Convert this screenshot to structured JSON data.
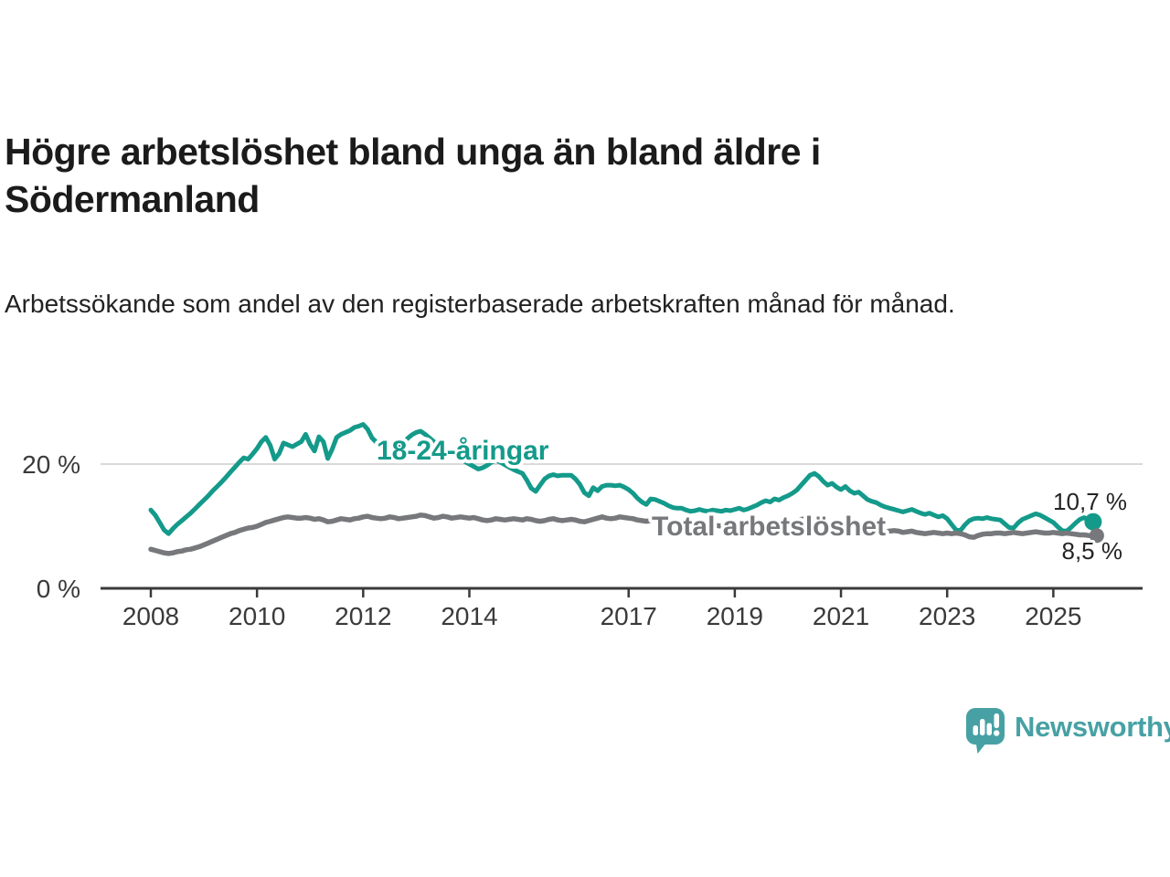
{
  "header": {
    "title": "Högre arbetslöshet bland unga än bland äldre i Södermanland",
    "subtitle": "Arbetssökande som andel av den registerbaserade arbetskraften månad för månad."
  },
  "chart_data": {
    "type": "line",
    "title": "Högre arbetslöshet bland unga än bland äldre i Södermanland",
    "xlabel": "",
    "ylabel": "Arbetssökande som andel av den registerbaserade arbetskraften",
    "x_unit": "month",
    "x_start_year": 2008,
    "x_start": "2008-01",
    "x_end": "2025-10",
    "x_ticks": [
      2008,
      2010,
      2012,
      2014,
      2017,
      2019,
      2021,
      2023,
      2025
    ],
    "y_ticks": [
      {
        "label": "0 %",
        "value": 0
      },
      {
        "label": "20 %",
        "value": 20
      }
    ],
    "ylim": [
      0,
      27.5
    ],
    "grid": "horizontal-only",
    "legend_position": "inline-labels",
    "series": [
      {
        "name": "18-24-åringar",
        "color": "#149a8a",
        "end_label": "10,7 %",
        "end_value": 10.7,
        "values": [
          12.6,
          11.8,
          10.6,
          9.4,
          8.8,
          9.6,
          10.3,
          10.9,
          11.5,
          12.1,
          12.8,
          13.5,
          14.2,
          14.9,
          15.7,
          16.4,
          17.1,
          17.9,
          18.7,
          19.5,
          20.3,
          21.0,
          20.8,
          21.6,
          22.5,
          23.6,
          24.3,
          23.0,
          20.8,
          21.7,
          23.4,
          23.1,
          22.8,
          23.2,
          23.6,
          24.8,
          23.2,
          22.1,
          24.4,
          23.6,
          20.9,
          22.4,
          24.3,
          24.8,
          25.1,
          25.4,
          25.9,
          26.1,
          26.4,
          25.6,
          24.2,
          23.5,
          22.6,
          21.8,
          21.4,
          21.6,
          22.4,
          23.3,
          24.1,
          24.7,
          25.1,
          25.3,
          24.8,
          24.2,
          23.6,
          23.0,
          22.5,
          22.0,
          21.6,
          21.2,
          20.8,
          20.4,
          20.0,
          19.6,
          19.2,
          19.4,
          19.8,
          20.3,
          20.6,
          20.3,
          19.9,
          19.5,
          19.1,
          18.8,
          18.5,
          17.4,
          16.1,
          15.6,
          16.6,
          17.6,
          18.1,
          18.3,
          18.1,
          18.2,
          18.2,
          18.2,
          17.6,
          16.7,
          15.4,
          14.9,
          16.2,
          15.7,
          16.4,
          16.6,
          16.6,
          16.5,
          16.6,
          16.3,
          15.9,
          15.3,
          14.5,
          13.9,
          13.5,
          14.4,
          14.3,
          14.0,
          13.7,
          13.3,
          13.0,
          12.9,
          12.9,
          12.6,
          12.4,
          12.5,
          12.7,
          12.5,
          12.4,
          12.6,
          12.5,
          12.4,
          12.6,
          12.5,
          12.7,
          12.9,
          12.6,
          12.8,
          13.1,
          13.4,
          13.8,
          14.1,
          13.9,
          14.4,
          14.2,
          14.6,
          14.9,
          15.3,
          15.8,
          16.6,
          17.4,
          18.2,
          18.5,
          18.0,
          17.2,
          16.6,
          16.9,
          16.3,
          15.9,
          16.4,
          15.7,
          15.3,
          15.5,
          14.9,
          14.3,
          14.0,
          13.8,
          13.4,
          13.1,
          12.9,
          12.7,
          12.5,
          12.3,
          12.5,
          12.7,
          12.4,
          12.1,
          11.9,
          12.1,
          11.8,
          11.5,
          11.7,
          11.2,
          10.3,
          9.4,
          9.3,
          10.2,
          10.9,
          11.2,
          11.3,
          11.2,
          11.4,
          11.2,
          11.1,
          11.0,
          10.4,
          9.8,
          9.7,
          10.5,
          11.1,
          11.4,
          11.7,
          12.0,
          11.8,
          11.4,
          11.0,
          10.6,
          9.9,
          9.3,
          9.2,
          9.8,
          10.5,
          11.1,
          11.4,
          10.9,
          10.7
        ]
      },
      {
        "name": "Total arbetslöshet",
        "color": "#77787b",
        "end_label": "8,5 %",
        "end_value": 8.5,
        "values": [
          6.3,
          6.1,
          5.9,
          5.7,
          5.6,
          5.7,
          5.9,
          6.0,
          6.2,
          6.3,
          6.5,
          6.7,
          7.0,
          7.3,
          7.6,
          7.9,
          8.2,
          8.5,
          8.8,
          9.0,
          9.3,
          9.5,
          9.7,
          9.8,
          10.0,
          10.3,
          10.6,
          10.8,
          11.0,
          11.2,
          11.4,
          11.5,
          11.4,
          11.3,
          11.3,
          11.4,
          11.3,
          11.1,
          11.2,
          11.0,
          10.7,
          10.8,
          11.0,
          11.2,
          11.1,
          11.0,
          11.2,
          11.3,
          11.5,
          11.6,
          11.4,
          11.3,
          11.2,
          11.3,
          11.5,
          11.4,
          11.2,
          11.3,
          11.4,
          11.5,
          11.6,
          11.8,
          11.7,
          11.5,
          11.3,
          11.4,
          11.6,
          11.5,
          11.3,
          11.4,
          11.5,
          11.4,
          11.3,
          11.4,
          11.2,
          11.0,
          10.9,
          11.0,
          11.2,
          11.1,
          11.0,
          11.1,
          11.2,
          11.1,
          11.0,
          11.2,
          11.1,
          10.9,
          10.8,
          10.9,
          11.1,
          11.2,
          11.0,
          10.9,
          11.0,
          11.1,
          11.0,
          10.8,
          10.7,
          10.9,
          11.1,
          11.3,
          11.5,
          11.3,
          11.2,
          11.3,
          11.5,
          11.4,
          11.3,
          11.2,
          11.0,
          10.9,
          10.8,
          10.9,
          11.1,
          11.0,
          10.8,
          10.7,
          10.6,
          10.7,
          10.6,
          10.5,
          10.3,
          10.2,
          10.1,
          10.2,
          10.4,
          10.3,
          10.1,
          10.0,
          10.1,
          10.2,
          10.1,
          10.2,
          10.0,
          9.9,
          10.0,
          10.2,
          10.4,
          10.3,
          10.4,
          10.5,
          10.4,
          10.5,
          10.6,
          10.7,
          10.9,
          11.1,
          11.2,
          11.1,
          11.0,
          10.8,
          10.6,
          10.5,
          10.4,
          10.3,
          10.2,
          10.1,
          10.0,
          9.9,
          9.7,
          9.5,
          9.4,
          9.5,
          9.3,
          9.2,
          9.1,
          9.2,
          9.3,
          9.2,
          9.0,
          9.1,
          9.2,
          9.0,
          8.9,
          8.8,
          8.9,
          9.0,
          8.9,
          8.8,
          8.9,
          8.8,
          8.9,
          8.8,
          8.6,
          8.3,
          8.2,
          8.5,
          8.7,
          8.8,
          8.8,
          8.9,
          8.9,
          8.8,
          8.9,
          9.0,
          8.9,
          8.8,
          8.9,
          9.0,
          9.1,
          9.0,
          8.9,
          8.9,
          9.0,
          8.9,
          8.8,
          8.9,
          8.8,
          8.7,
          8.6,
          8.6,
          8.5,
          8.5
        ]
      }
    ]
  },
  "branding": {
    "name": "Newsworthy",
    "color": "#47a1a4"
  },
  "colors": {
    "axis": "#3a3a3a",
    "grid": "#d9d9d9",
    "title_text": "#1b1b1b",
    "value_label": "#242424"
  }
}
